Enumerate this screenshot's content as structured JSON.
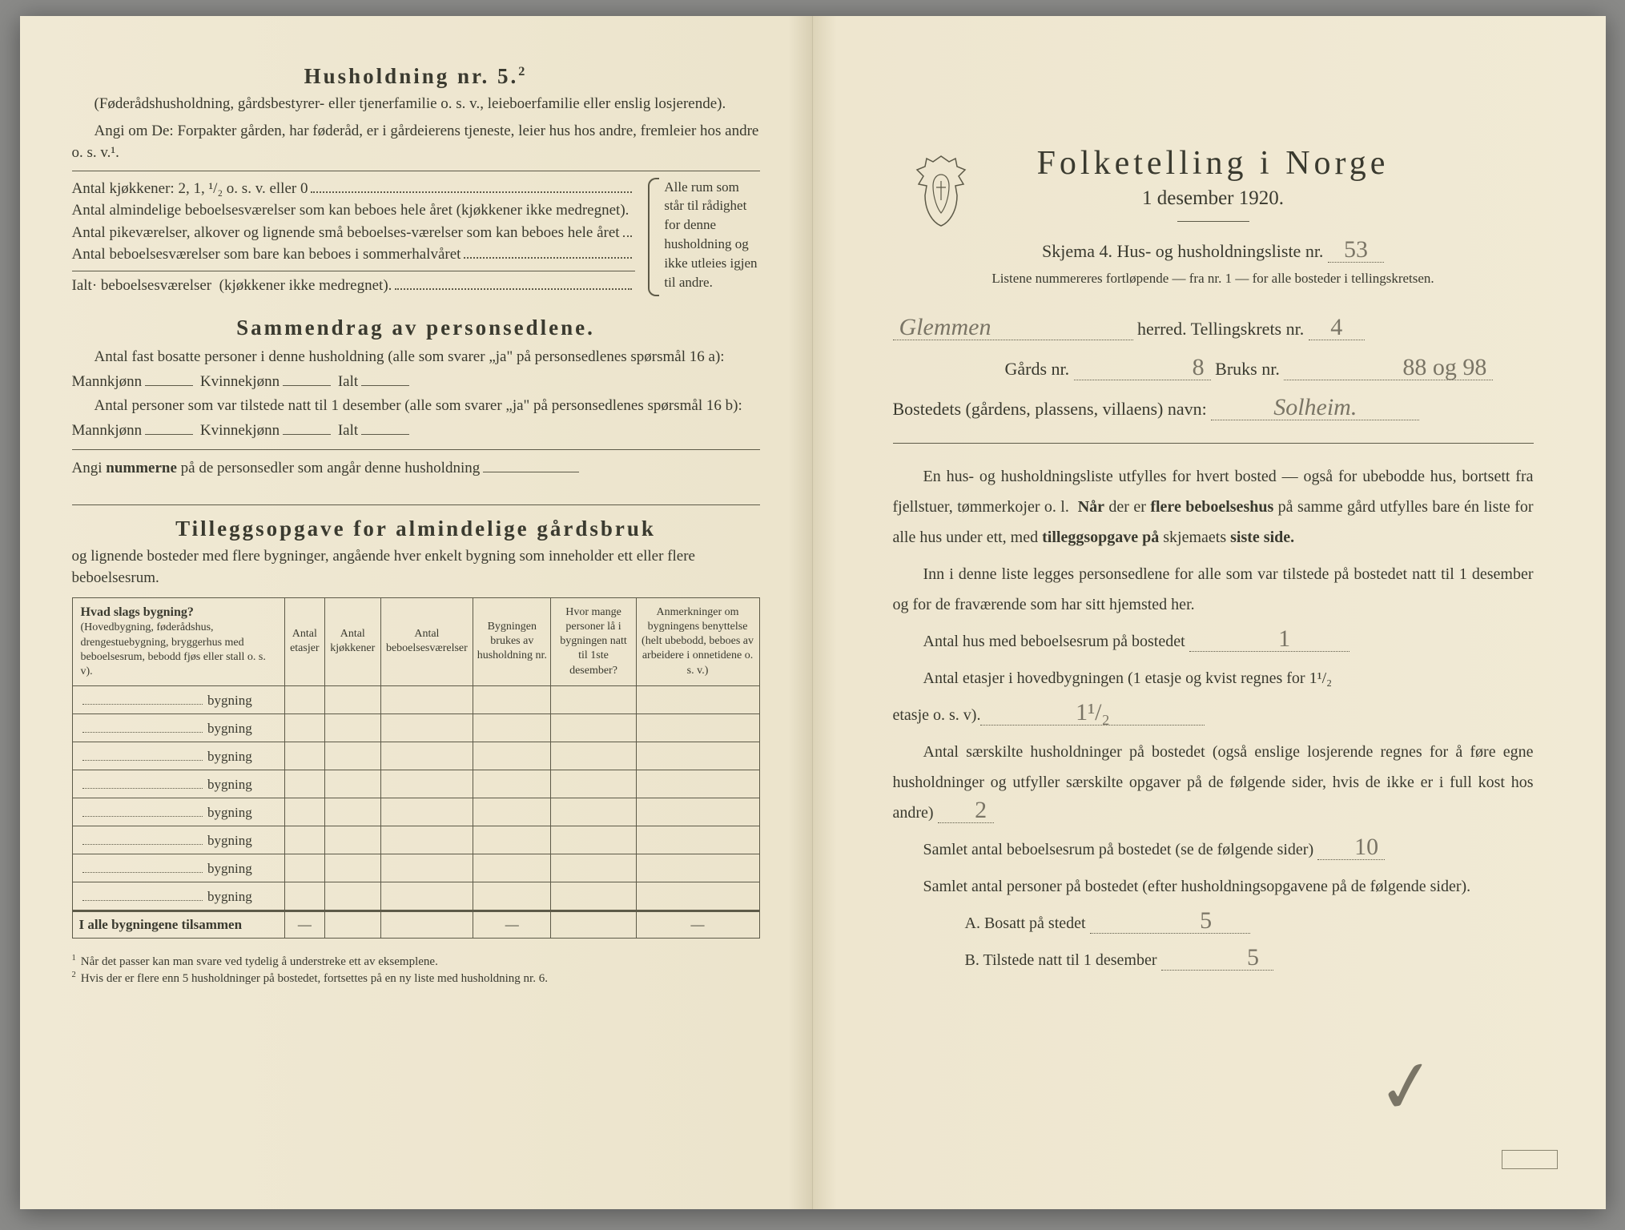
{
  "left": {
    "h5_title": "Husholdning nr. 5.",
    "h5_paren": "(Føderådshusholdning, gårdsbestyrer- eller tjenerfamilie o. s. v., leieboerfamilie eller enslig losjerende).",
    "h5_angi": "Angi om De: Forpakter gården, har føderåd, er i gårdeierens tjeneste, leier hus hos andre, fremleier hos andre o. s. v.¹.",
    "rows": {
      "kjokkener": "Antal kjøkkener: 2, 1, ¹/₂ o. s. v. eller 0",
      "almindelige": "Antal almindelige beboelsesværelser som kan beboes hele året (kjøkkener ikke medregnet).",
      "pike": "Antal pikeværelser, alkover og lignende små beboelses-værelser som kan beboes hele året",
      "sommer": "Antal beboelsesværelser som bare kan beboes i sommerhalvåret",
      "ialt": "Ialt· beboelsesværelser  (kjøkkener ikke medregnet)."
    },
    "brace_text": "Alle rum som står til rådighet for denne husholdning og ikke utleies igjen til andre.",
    "sammendrag_title": "Sammendrag av personsedlene.",
    "sammendrag_l1": "Antal fast bosatte personer i denne husholdning (alle som svarer „ja\" på personsedlenes spørsmål 16 a): Mannkjønn",
    "kvinne": "Kvinnekjønn",
    "ialt_lbl": "Ialt",
    "sammendrag_l2": "Antal personer som var tilstede natt til 1 desember (alle som svarer „ja\" på personsedlenes spørsmål 16 b): Mannkjønn",
    "angi_num": "Angi nummerne på de personsedler som angår denne husholdning",
    "tillegg_title": "Tilleggsopgave for almindelige gårdsbruk",
    "tillegg_para": "og lignende bosteder med flere bygninger, angående hver enkelt bygning som inneholder ett eller flere beboelsesrum.",
    "table": {
      "headers": {
        "c1_title": "Hvad slags bygning?",
        "c1_sub": "(Hovedbygning, føderådshus, drengestuebygning, bryggerhus med beboelsesrum, bebodd fjøs eller stall o. s. v).",
        "c2": "Antal etasjer",
        "c3": "Antal kjøkkener",
        "c4": "Antal beboelsesværelser",
        "c5": "Bygningen brukes av husholdning nr.",
        "c6": "Hvor mange personer lå i bygningen natt til 1ste desember?",
        "c7": "Anmerkninger om bygningens benyttelse (helt ubebodd, beboes av arbeidere i onnetidene o. s. v.)"
      },
      "row_label": "bygning",
      "row_count": 8,
      "total_label": "I alle bygningene tilsammen",
      "dash": "—"
    },
    "footnotes": {
      "f1": "Når det passer kan man svare ved tydelig å understreke ett av eksemplene.",
      "f2": "Hvis der er flere enn 5 husholdninger på bostedet, fortsettes på en ny liste med husholdning nr. 6."
    }
  },
  "right": {
    "title": "Folketelling i Norge",
    "subtitle": "1 desember 1920.",
    "skjema": "Skjema 4.   Hus- og husholdningsliste nr.",
    "skjema_nr": "53",
    "listene": "Listene nummereres fortløpende — fra nr. 1 — for alle bosteder i tellingskretsen.",
    "herred_val": "Glemmen",
    "herred_lbl": "herred.   Tellingskrets nr.",
    "krets_nr": "4",
    "gards_lbl": "Gårds nr.",
    "gards_nr": "8",
    "bruks_lbl": "Bruks nr.",
    "bruks_nr": "88 og 98",
    "bosted_lbl": "Bostedets (gårdens, plassens, villaens) navn:",
    "bosted_val": "Solheim.",
    "p1": "En hus- og husholdningsliste utfylles for hvert bosted — også for ubebodde hus, bortsett fra fjellstuer, tømmerkojer o. l.  Når der er flere beboelseshus på samme gård utfylles bare én liste for alle hus under ett, med tilleggsopgave på skjemaets siste side.",
    "p2": "Inn i denne liste legges personsedlene for alle som var tilstede på bostedet natt til 1 desember og for de fraværende som har sitt hjemsted her.",
    "antal_hus": "Antal hus med beboelsesrum på bostedet",
    "antal_hus_val": "1",
    "antal_etasjer": "Antal etasjer i hovedbygningen (1 etasje og kvist regnes for 1¹/₂ etasje o. s. v).",
    "antal_etasjer_val": "1¹/₂",
    "saerskilte": "Antal særskilte husholdninger på bostedet (også enslige losjerende regnes for å føre egne husholdninger og utfyller særskilte opgaver på de følgende sider, hvis de ikke er i full kost hos andre)",
    "saerskilte_val": "2",
    "samlet_rum": "Samlet antal beboelsesrum på bostedet (se de følgende sider)",
    "samlet_rum_val": "10",
    "samlet_pers": "Samlet antal personer på bostedet (efter husholdningsopgavene på de følgende sider).",
    "a_label": "A.  Bosatt på stedet",
    "a_val": "5",
    "b_label": "B.  Tilstede natt til 1 desember",
    "b_val": "5"
  },
  "colors": {
    "paper": "#f0e9d4",
    "ink": "#3a3a2f",
    "pencil": "#7a7566",
    "rule": "#5d5a48"
  }
}
